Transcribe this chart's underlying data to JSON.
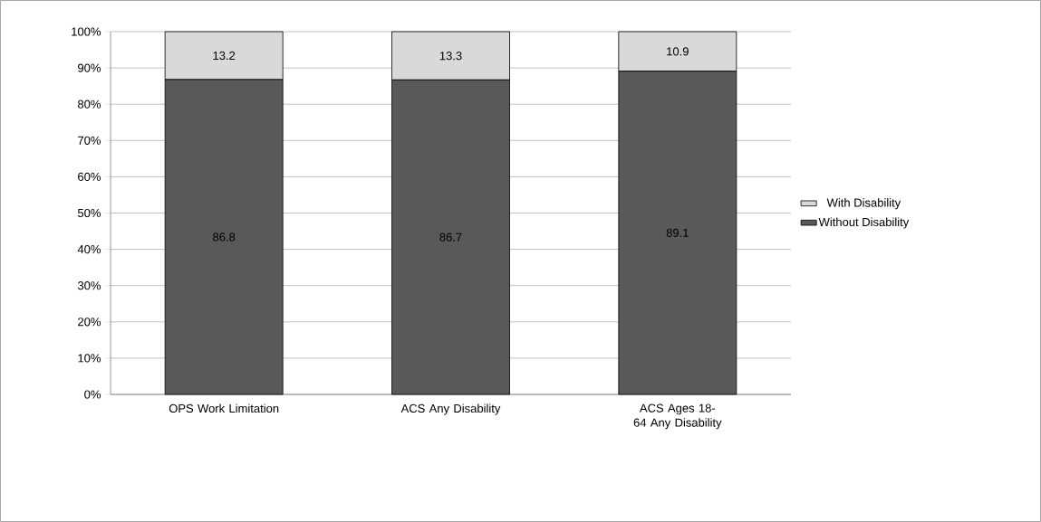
{
  "chart_data": {
    "type": "bar",
    "stacked": true,
    "categories": [
      "OPS Work Limitation",
      "ACS Any Disability",
      "ACS Ages 18-64 Any Disability"
    ],
    "series": [
      {
        "name": "Without Disability",
        "color": "#595959",
        "values": [
          86.8,
          86.7,
          89.1
        ]
      },
      {
        "name": "With Disability",
        "color": "#d9d9d9",
        "values": [
          13.2,
          13.3,
          10.9
        ]
      }
    ],
    "ylim": [
      0,
      100
    ],
    "yticks": [
      {
        "value": 0,
        "label": "0%"
      },
      {
        "value": 10,
        "label": "10%"
      },
      {
        "value": 20,
        "label": "20%"
      },
      {
        "value": 30,
        "label": "30%"
      },
      {
        "value": 40,
        "label": "40%"
      },
      {
        "value": 50,
        "label": "50%"
      },
      {
        "value": 60,
        "label": "60%"
      },
      {
        "value": 70,
        "label": "70%"
      },
      {
        "value": 80,
        "label": "80%"
      },
      {
        "value": 90,
        "label": "90%"
      },
      {
        "value": 100,
        "label": "100%"
      }
    ],
    "grid": "y",
    "legend": "right",
    "data_labels": true
  }
}
